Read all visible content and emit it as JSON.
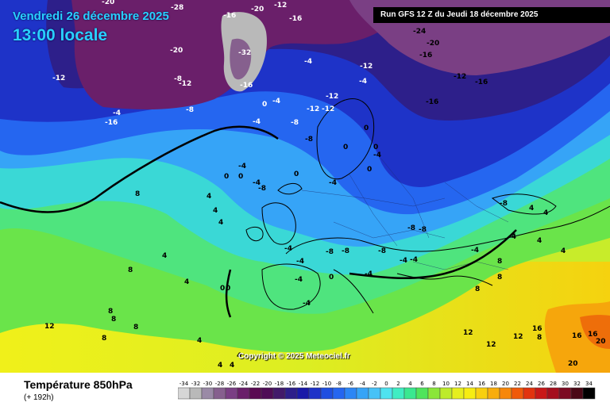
{
  "header": {
    "date": "Vendredi 26 décembre 2025",
    "time": "13:00 locale",
    "run": "Run GFS 12 Z du Jeudi 18 décembre 2025"
  },
  "map": {
    "copyright": "Copyright © 2025 Meteociel.fr",
    "labels": [
      "-20",
      "-28",
      "-16",
      "-20",
      "-12",
      "-16",
      "-32",
      "-20",
      "-24",
      "-20",
      "-16",
      "-12",
      "-16",
      "-12",
      "-16",
      "-8",
      "-8",
      "-4",
      "-12",
      "-16",
      "-16",
      "-4",
      "-12",
      "-12",
      "-4",
      "-4",
      "-8",
      "-12",
      "-12",
      "-8",
      "-4",
      "0",
      "0",
      "0",
      "-4",
      "-4",
      "-4",
      "-8",
      "0",
      "0",
      "4",
      "0",
      "0",
      "0",
      "-4",
      "4",
      "4",
      "4",
      "4",
      "-8",
      "-8",
      "-8",
      "8",
      "-4",
      "-4",
      "-4",
      "-8",
      "-4",
      "-8",
      "-4",
      "-4",
      "0",
      "-4",
      "-8",
      "0",
      "4",
      "-4",
      "-4",
      "8",
      "8",
      "4",
      "8",
      "4",
      "4",
      "8",
      "12",
      "8",
      "8",
      "8",
      "12",
      "12",
      "16",
      "16",
      "12",
      "4",
      "4",
      "4",
      "8",
      "20",
      "16",
      "20",
      "0",
      "4",
      "8"
    ]
  },
  "footer": {
    "parameter": "Température 850hPa",
    "range": "(+ 192h)",
    "scale": [
      {
        "label": "-34",
        "color": "#d6d6d6"
      },
      {
        "label": "-32",
        "color": "#b9b9b9"
      },
      {
        "label": "-30",
        "color": "#9a8aa6"
      },
      {
        "label": "-28",
        "color": "#86608e"
      },
      {
        "label": "-26",
        "color": "#7a3f84"
      },
      {
        "label": "-24",
        "color": "#6a1f6a"
      },
      {
        "label": "-22",
        "color": "#5a0a52"
      },
      {
        "label": "-20",
        "color": "#4f0d56"
      },
      {
        "label": "-18",
        "color": "#421a6a"
      },
      {
        "label": "-16",
        "color": "#2d1f8a"
      },
      {
        "label": "-14",
        "color": "#1a1aa8"
      },
      {
        "label": "-12",
        "color": "#1e33c8"
      },
      {
        "label": "-10",
        "color": "#1f4fe0"
      },
      {
        "label": "-8",
        "color": "#2566f0"
      },
      {
        "label": "-6",
        "color": "#2c86f5"
      },
      {
        "label": "-4",
        "color": "#36a4f7"
      },
      {
        "label": "-2",
        "color": "#47c2f7"
      },
      {
        "label": "0",
        "color": "#4ee3ef"
      },
      {
        "label": "2",
        "color": "#40edc3"
      },
      {
        "label": "4",
        "color": "#3ae890"
      },
      {
        "label": "6",
        "color": "#4fe45c"
      },
      {
        "label": "8",
        "color": "#8ae63a"
      },
      {
        "label": "10",
        "color": "#bdeb2a"
      },
      {
        "label": "12",
        "color": "#e6ef1e"
      },
      {
        "label": "14",
        "color": "#f6ed12"
      },
      {
        "label": "16",
        "color": "#f8cf0f"
      },
      {
        "label": "18",
        "color": "#f8ad0c"
      },
      {
        "label": "20",
        "color": "#f7870a"
      },
      {
        "label": "22",
        "color": "#f05a0a"
      },
      {
        "label": "24",
        "color": "#e2330e"
      },
      {
        "label": "26",
        "color": "#c91818"
      },
      {
        "label": "28",
        "color": "#a50f1e"
      },
      {
        "label": "30",
        "color": "#7c0a22"
      },
      {
        "label": "32",
        "color": "#4a0816"
      },
      {
        "label": "34",
        "color": "#000000"
      }
    ]
  }
}
